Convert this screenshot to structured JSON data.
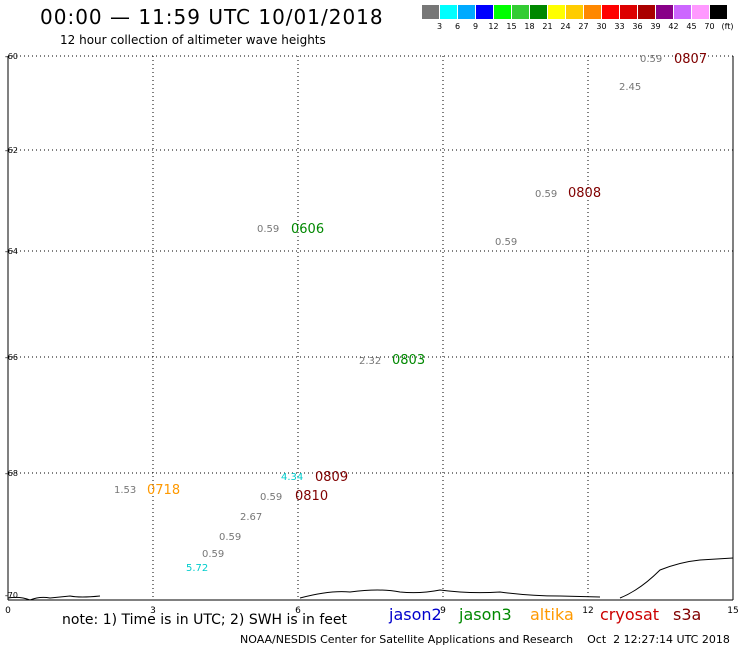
{
  "header": {
    "title": "00:00 — 11:59 UTC 10/01/2018",
    "subtitle": "12 hour collection of altimeter wave heights"
  },
  "colorbar": {
    "colors": [
      "#777777",
      "#00ffff",
      "#00aaff",
      "#0000ff",
      "#00ff00",
      "#33cc33",
      "#008800",
      "#ffff00",
      "#ffcc00",
      "#ff8800",
      "#ff0000",
      "#dd0000",
      "#aa0000",
      "#880088",
      "#cc66ff",
      "#ff99ff",
      "#000000"
    ],
    "labels": [
      "3",
      "6",
      "9",
      "12",
      "15",
      "18",
      "21",
      "24",
      "27",
      "30",
      "33",
      "36",
      "39",
      "42",
      "45",
      "70"
    ],
    "unit": "(ft)"
  },
  "axes": {
    "x_ticks": [
      "0",
      "3",
      "6",
      "9",
      "12",
      "15"
    ],
    "y_ticks": [
      "-60",
      "-62",
      "-64",
      "-66",
      "-68",
      "-70"
    ]
  },
  "markers": [
    {
      "label": "0807",
      "color": "#800000"
    },
    {
      "label": "0808",
      "color": "#800000"
    },
    {
      "label": "0606",
      "color": "#008800"
    },
    {
      "label": "0803",
      "color": "#008800"
    },
    {
      "label": "0809",
      "color": "#800000"
    },
    {
      "label": "0810",
      "color": "#800000"
    },
    {
      "label": "0718",
      "color": "#ff9900"
    }
  ],
  "values": [
    {
      "label": "0.59",
      "color": "#777777"
    },
    {
      "label": "2.45",
      "color": "#777777"
    },
    {
      "label": "0.59",
      "color": "#777777"
    },
    {
      "label": "0.59",
      "color": "#777777"
    },
    {
      "label": "0.59",
      "color": "#777777"
    },
    {
      "label": "2.32",
      "color": "#777777"
    },
    {
      "label": "4.34",
      "color": "#00cccc"
    },
    {
      "label": "1.53",
      "color": "#777777"
    },
    {
      "label": "0.59",
      "color": "#777777"
    },
    {
      "label": "2.67",
      "color": "#777777"
    },
    {
      "label": "0.59",
      "color": "#777777"
    },
    {
      "label": "0.59",
      "color": "#777777"
    },
    {
      "label": "5.72",
      "color": "#00cccc"
    }
  ],
  "footer": {
    "note": "note: 1) Time is in UTC; 2) SWH is in feet",
    "satellites": [
      {
        "name": "jason2",
        "color": "#0000cc"
      },
      {
        "name": "jason3",
        "color": "#008800"
      },
      {
        "name": "altika",
        "color": "#ff9900"
      },
      {
        "name": "cryosat",
        "color": "#cc0000"
      },
      {
        "name": "s3a",
        "color": "#800000"
      }
    ],
    "credit": "NOAA/NESDIS Center for Satellite Applications and Research    Oct  2 12:27:14 UTC 2018"
  }
}
